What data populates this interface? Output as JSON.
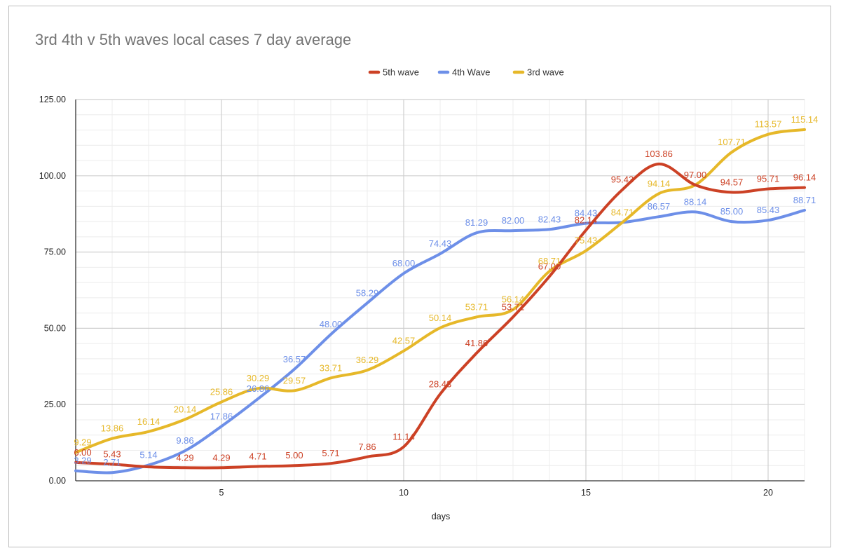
{
  "chart_data": {
    "type": "line",
    "title": "3rd 4th v 5th waves local cases 7 day average",
    "xlabel": "days",
    "ylabel": "",
    "x": [
      1,
      2,
      3,
      4,
      5,
      6,
      7,
      8,
      9,
      10,
      11,
      12,
      13,
      14,
      15,
      16,
      17,
      18,
      19,
      20,
      21
    ],
    "xlim": [
      1,
      21
    ],
    "ylim": [
      0,
      125
    ],
    "x_ticks": [
      5,
      10,
      15,
      20
    ],
    "y_ticks": [
      "0.00",
      "25.00",
      "50.00",
      "75.00",
      "100.00",
      "125.00"
    ],
    "legend_position": "top-center",
    "grid": true,
    "series": [
      {
        "name": "5th wave",
        "color": "#cc4125",
        "values": [
          6.0,
          5.43,
          4.57,
          4.29,
          4.29,
          4.71,
          5.0,
          5.71,
          7.86,
          11.14,
          28.43,
          41.86,
          53.71,
          67.0,
          82.14,
          95.43,
          103.86,
          97.0,
          94.57,
          95.71,
          96.14
        ],
        "labels": [
          "6.00",
          "5.43",
          "",
          "4.29",
          "4.29",
          "4.71",
          "5.00",
          "5.71",
          "7.86",
          "11.14",
          "28.43",
          "41.86",
          "53.71",
          "67.00",
          "82.14",
          "95.43",
          "103.86",
          "97.00",
          "94.57",
          "95.71",
          "96.14"
        ]
      },
      {
        "name": "4th Wave",
        "color": "#6d8fe8",
        "values": [
          3.29,
          2.71,
          5.14,
          9.86,
          17.86,
          26.86,
          36.57,
          48.0,
          58.29,
          68.0,
          74.43,
          81.29,
          82.0,
          82.43,
          84.43,
          84.71,
          86.57,
          88.14,
          85.0,
          85.43,
          88.71
        ],
        "labels": [
          "3.29",
          "2.71",
          "5.14",
          "9.86",
          "17.86",
          "26.86",
          "36.57",
          "48.00",
          "58.29",
          "68.00",
          "74.43",
          "81.29",
          "82.00",
          "82.43",
          "84.43",
          "",
          "86.57",
          "88.14",
          "85.00",
          "85.43",
          "88.71"
        ]
      },
      {
        "name": "3rd wave",
        "color": "#e6b829",
        "values": [
          9.29,
          13.86,
          16.14,
          20.14,
          25.86,
          30.29,
          29.57,
          33.71,
          36.29,
          42.57,
          50.14,
          53.71,
          56.14,
          68.71,
          75.43,
          84.71,
          94.14,
          97.0,
          107.71,
          113.57,
          115.14
        ],
        "labels": [
          "9.29",
          "13.86",
          "16.14",
          "20.14",
          "25.86",
          "30.29",
          "29.57",
          "33.71",
          "36.29",
          "42.57",
          "50.14",
          "53.71",
          "56.14",
          "68.71",
          "75.43",
          "84.71",
          "94.14",
          "",
          "107.71",
          "113.57",
          "115.14"
        ]
      }
    ]
  }
}
